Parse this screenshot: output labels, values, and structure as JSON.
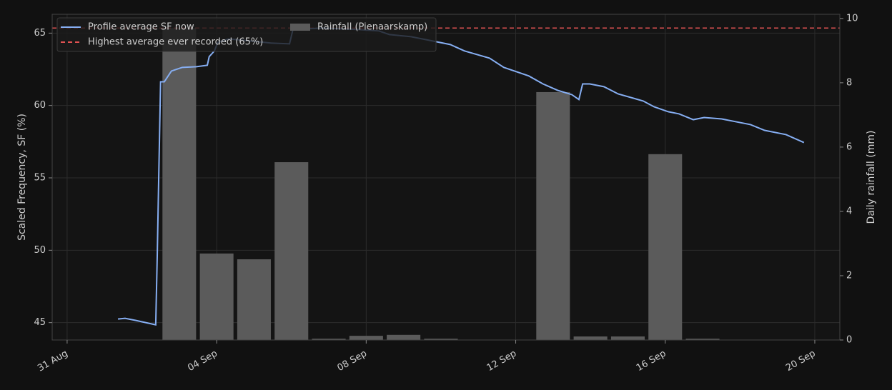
{
  "chart_data": {
    "type": "line",
    "ylabel": "Scaled Frequency, SF (%)",
    "y2label": "Daily rainfall (mm)",
    "xlim": [
      -0.4,
      20.67
    ],
    "xticks": [
      {
        "value": 0,
        "label": "31 Aug"
      },
      {
        "value": 4,
        "label": "04 Sep"
      },
      {
        "value": 8,
        "label": "08 Sep"
      },
      {
        "value": 12,
        "label": "12 Sep"
      },
      {
        "value": 16,
        "label": "16 Sep"
      },
      {
        "value": 20,
        "label": "20 Sep"
      }
    ],
    "ylim": [
      43.8,
      66.3
    ],
    "yticks": [
      45,
      50,
      55,
      60,
      65
    ],
    "y2lim": [
      0,
      10.13
    ],
    "y2ticks": [
      0,
      2,
      4,
      6,
      8,
      10
    ],
    "grid": true,
    "legend": "upper left",
    "series": [
      {
        "name": "Profile average SF now",
        "type": "line",
        "color": "#86aef2",
        "x": [
          1.36,
          1.55,
          1.84,
          2.37,
          2.41,
          2.45,
          2.5,
          2.6,
          2.79,
          3.08,
          3.46,
          3.75,
          3.8,
          3.94,
          4.03,
          4.32,
          4.89,
          5.47,
          5.95,
          6.04,
          6.81,
          7.76,
          8.34,
          8.62,
          9.2,
          9.67,
          10.25,
          10.63,
          11.3,
          11.68,
          12.35,
          12.73,
          13.12,
          13.5,
          13.69,
          13.79,
          13.98,
          14.36,
          14.74,
          15.41,
          15.7,
          16.08,
          16.37,
          16.75,
          17.04,
          17.51,
          18.28,
          18.66,
          19.23,
          19.71
        ],
        "values": [
          45.25,
          45.3,
          45.15,
          44.85,
          49.54,
          54.98,
          61.64,
          61.64,
          62.38,
          62.63,
          62.68,
          62.78,
          63.37,
          63.77,
          64.36,
          64.6,
          64.46,
          64.31,
          64.26,
          65.25,
          65.35,
          65.25,
          65.15,
          64.9,
          64.75,
          64.51,
          64.21,
          63.77,
          63.27,
          62.63,
          62.04,
          61.49,
          61.05,
          60.75,
          60.41,
          61.49,
          61.49,
          61.3,
          60.8,
          60.31,
          59.91,
          59.57,
          59.42,
          59.02,
          59.17,
          59.07,
          58.68,
          58.28,
          57.99,
          57.44
        ]
      },
      {
        "name": "Highest average ever recorded (65%)",
        "type": "hline",
        "color": "#e05252",
        "values": [
          65.35
        ]
      },
      {
        "name": "Rainfall (Pienaarskamp)",
        "type": "bar",
        "axis": "y2",
        "color": "#5b5b5b",
        "x": [
          3,
          4,
          5,
          6,
          7,
          8,
          9,
          10,
          13,
          14,
          15,
          16,
          17
        ],
        "values": [
          9.7,
          2.69,
          2.51,
          5.53,
          0.04,
          0.13,
          0.16,
          0.04,
          7.71,
          0.11,
          0.11,
          5.78,
          0.04
        ]
      }
    ]
  }
}
